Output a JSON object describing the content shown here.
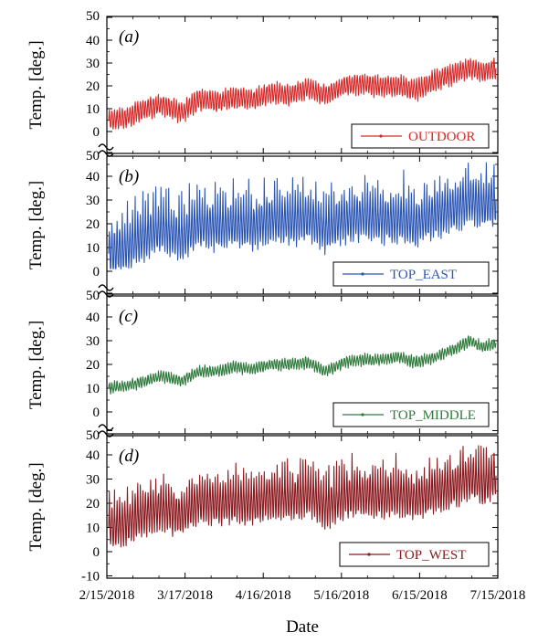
{
  "chart_data": {
    "type": "line",
    "xlabel": "Date",
    "x_ticks": [
      "2/15/2018",
      "3/17/2018",
      "4/16/2018",
      "5/16/2018",
      "6/15/2018",
      "7/15/2018"
    ],
    "xlim": [
      "2018-02-15",
      "2018-07-15"
    ],
    "grid": false,
    "panels": [
      {
        "label": "(a)",
        "ylabel": "Temp. [deg.]",
        "ylim": [
          0,
          50
        ],
        "yticks": [
          "50",
          "40",
          "30",
          "20",
          "10",
          "0"
        ],
        "axis_break": true,
        "legend_position": "bottom-right",
        "series": [
          {
            "name": "OUTDOOR",
            "color": "#d62a2a",
            "points": [
              [
                "2018-02-15",
                5
              ],
              [
                "2018-02-22",
                6
              ],
              [
                "2018-03-01",
                10
              ],
              [
                "2018-03-08",
                12
              ],
              [
                "2018-03-15",
                8
              ],
              [
                "2018-03-22",
                14
              ],
              [
                "2018-03-29",
                13
              ],
              [
                "2018-04-05",
                15
              ],
              [
                "2018-04-12",
                14
              ],
              [
                "2018-04-19",
                17
              ],
              [
                "2018-04-26",
                16
              ],
              [
                "2018-05-03",
                19
              ],
              [
                "2018-05-10",
                16
              ],
              [
                "2018-05-17",
                20
              ],
              [
                "2018-05-24",
                21
              ],
              [
                "2018-05-31",
                20
              ],
              [
                "2018-06-07",
                20
              ],
              [
                "2018-06-14",
                18
              ],
              [
                "2018-06-21",
                22
              ],
              [
                "2018-06-28",
                25
              ],
              [
                "2018-07-05",
                28
              ],
              [
                "2018-07-10",
                26
              ],
              [
                "2018-07-15",
                28
              ]
            ]
          }
        ]
      },
      {
        "label": "(b)",
        "ylabel": "Temp. [deg.]",
        "ylim": [
          0,
          50
        ],
        "yticks": [
          "50",
          "40",
          "30",
          "20",
          "10",
          "0"
        ],
        "axis_break": true,
        "legend_position": "bottom-right",
        "series": [
          {
            "name": "TOP_EAST",
            "color": "#2c56b4",
            "points": [
              [
                "2018-02-15",
                8
              ],
              [
                "2018-02-22",
                10
              ],
              [
                "2018-03-01",
                15
              ],
              [
                "2018-03-08",
                18
              ],
              [
                "2018-03-15",
                14
              ],
              [
                "2018-03-22",
                20
              ],
              [
                "2018-03-29",
                19
              ],
              [
                "2018-04-05",
                20
              ],
              [
                "2018-04-12",
                19
              ],
              [
                "2018-04-19",
                22
              ],
              [
                "2018-04-26",
                21
              ],
              [
                "2018-05-03",
                23
              ],
              [
                "2018-05-10",
                18
              ],
              [
                "2018-05-17",
                22
              ],
              [
                "2018-05-24",
                23
              ],
              [
                "2018-05-31",
                22
              ],
              [
                "2018-06-07",
                22
              ],
              [
                "2018-06-14",
                20
              ],
              [
                "2018-06-21",
                24
              ],
              [
                "2018-06-28",
                26
              ],
              [
                "2018-07-05",
                30
              ],
              [
                "2018-07-10",
                28
              ],
              [
                "2018-07-15",
                30
              ]
            ]
          }
        ]
      },
      {
        "label": "(c)",
        "ylabel": "Temp. [deg.]",
        "ylim": [
          0,
          50
        ],
        "yticks": [
          "50",
          "40",
          "30",
          "20",
          "10",
          "0"
        ],
        "axis_break": true,
        "legend_position": "bottom-right",
        "series": [
          {
            "name": "TOP_MIDDLE",
            "color": "#2f7a3c",
            "points": [
              [
                "2018-02-15",
                10
              ],
              [
                "2018-02-22",
                11
              ],
              [
                "2018-03-01",
                13
              ],
              [
                "2018-03-08",
                15
              ],
              [
                "2018-03-15",
                13
              ],
              [
                "2018-03-22",
                17
              ],
              [
                "2018-03-29",
                17
              ],
              [
                "2018-04-05",
                19
              ],
              [
                "2018-04-12",
                18
              ],
              [
                "2018-04-19",
                20
              ],
              [
                "2018-04-26",
                20
              ],
              [
                "2018-05-03",
                21
              ],
              [
                "2018-05-10",
                17
              ],
              [
                "2018-05-17",
                21
              ],
              [
                "2018-05-24",
                22
              ],
              [
                "2018-05-31",
                22
              ],
              [
                "2018-06-07",
                23
              ],
              [
                "2018-06-14",
                21
              ],
              [
                "2018-06-21",
                23
              ],
              [
                "2018-06-28",
                26
              ],
              [
                "2018-07-05",
                30
              ],
              [
                "2018-07-10",
                27
              ],
              [
                "2018-07-15",
                29
              ]
            ]
          }
        ]
      },
      {
        "label": "(d)",
        "ylabel": "Temp. [deg.]",
        "ylim": [
          -10,
          50
        ],
        "yticks": [
          "50",
          "40",
          "30",
          "20",
          "10",
          "0",
          "-10"
        ],
        "axis_break": false,
        "legend_position": "bottom-right",
        "series": [
          {
            "name": "TOP_WEST",
            "color": "#8a1a1f",
            "points": [
              [
                "2018-02-15",
                10
              ],
              [
                "2018-02-22",
                12
              ],
              [
                "2018-03-01",
                16
              ],
              [
                "2018-03-08",
                18
              ],
              [
                "2018-03-15",
                15
              ],
              [
                "2018-03-22",
                21
              ],
              [
                "2018-03-29",
                20
              ],
              [
                "2018-04-05",
                21
              ],
              [
                "2018-04-12",
                20
              ],
              [
                "2018-04-19",
                23
              ],
              [
                "2018-04-26",
                22
              ],
              [
                "2018-05-03",
                24
              ],
              [
                "2018-05-10",
                19
              ],
              [
                "2018-05-17",
                23
              ],
              [
                "2018-05-24",
                24
              ],
              [
                "2018-05-31",
                23
              ],
              [
                "2018-06-07",
                24
              ],
              [
                "2018-06-14",
                22
              ],
              [
                "2018-06-21",
                25
              ],
              [
                "2018-06-28",
                27
              ],
              [
                "2018-07-05",
                31
              ],
              [
                "2018-07-10",
                28
              ],
              [
                "2018-07-15",
                31
              ]
            ]
          }
        ]
      }
    ]
  }
}
